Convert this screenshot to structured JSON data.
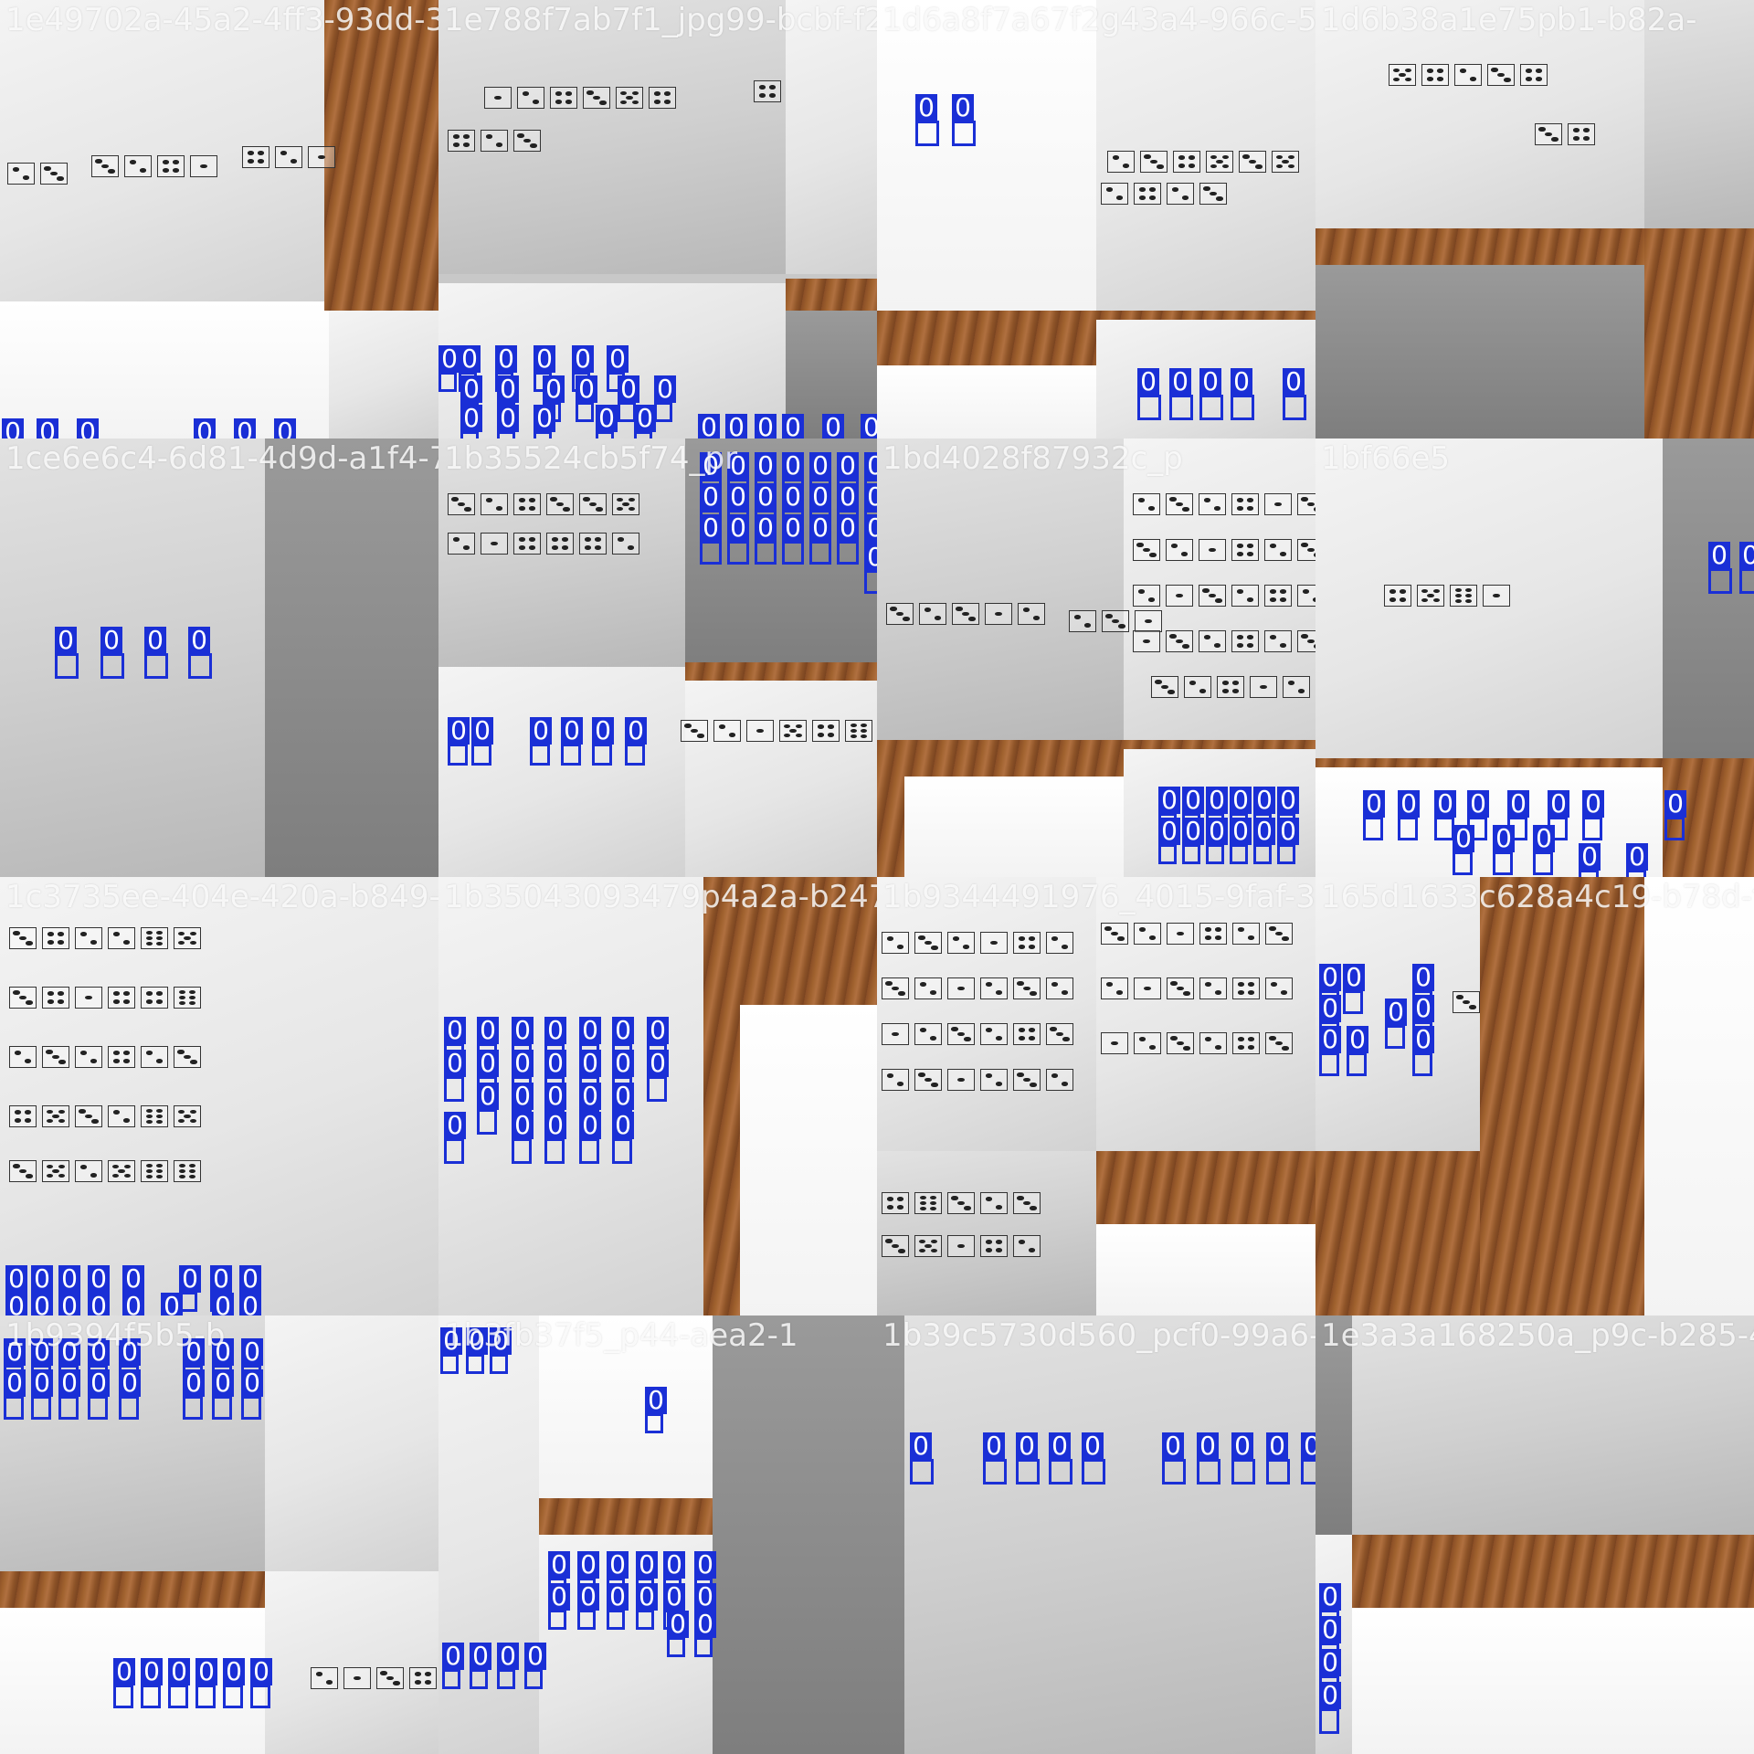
{
  "mosaic": {
    "label_text": "0",
    "box_color": "#1a2fd6",
    "tiles": [
      {
        "caption": "1e49702a-45a2-4ff3-93dd-3"
      },
      {
        "caption": "1e788f7ab7f1_jpg99-bcbf-f2"
      },
      {
        "caption": "1d6a8f7a67f2g43a4-966c-5"
      },
      {
        "caption": "1d6b38a1e75pb1-b82a-"
      },
      {
        "caption": "1ce6e6c4-6d81-4d9d-a1f4-7"
      },
      {
        "caption": "1b35524cb5f74_pr"
      },
      {
        "caption": "1bd4028f87932c_p"
      },
      {
        "caption": "1bf66e5"
      },
      {
        "caption": "1c3735ee-404e-420a-b849-8"
      },
      {
        "caption": "1b35043093479p4a2a-b247-6"
      },
      {
        "caption": "1b9344491976_4015-9faf-3"
      },
      {
        "caption": "165d1633c628a4c19-b78d-f"
      },
      {
        "caption": "1b9394f5b5-b"
      },
      {
        "caption": "1b3fb37f5_p44-aea2-1"
      },
      {
        "caption": "1b39c5730d560_pcf0-99a6-4"
      },
      {
        "caption": "1e3a3a168250a_p9c-b285-4"
      }
    ]
  }
}
